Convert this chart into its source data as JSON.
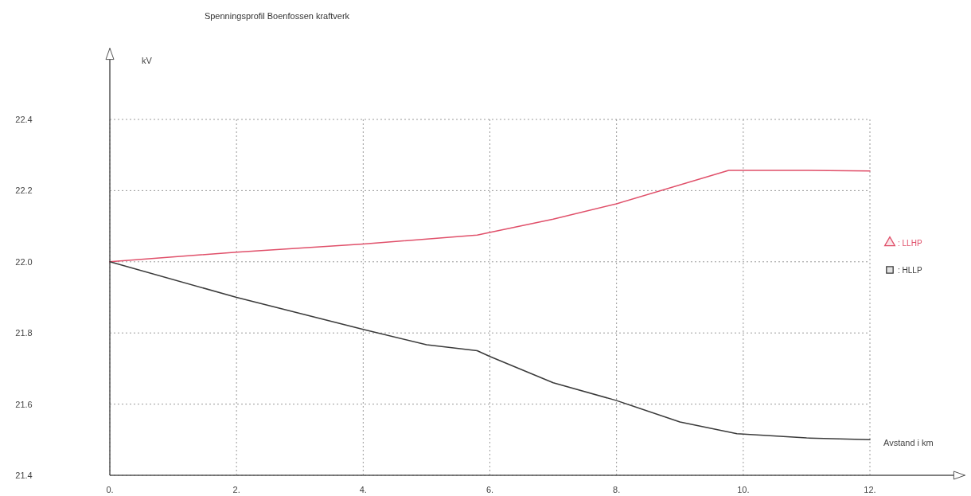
{
  "chart_data": {
    "type": "line",
    "title": "Spenningsprofil Boenfossen kraftverk",
    "xlabel": "Avstand i km",
    "ylabel": "kV",
    "xlim": [
      0,
      13.5
    ],
    "ylim": [
      21.4,
      22.6
    ],
    "xticks": [
      {
        "value": 0,
        "label": "0."
      },
      {
        "value": 2,
        "label": "2."
      },
      {
        "value": 4,
        "label": "4."
      },
      {
        "value": 6,
        "label": "6."
      },
      {
        "value": 8,
        "label": "8."
      },
      {
        "value": 10,
        "label": "10."
      },
      {
        "value": 12,
        "label": "12."
      }
    ],
    "yticks": [
      {
        "value": 21.4,
        "label": "21.4"
      },
      {
        "value": 21.6,
        "label": "21.6"
      },
      {
        "value": 21.8,
        "label": "21.8"
      },
      {
        "value": 22.0,
        "label": "22.0"
      },
      {
        "value": 22.2,
        "label": "22.2"
      },
      {
        "value": 22.4,
        "label": "22.4"
      }
    ],
    "grid": true,
    "legend": "right",
    "marker": "none",
    "line_style": "solid",
    "series": [
      {
        "name": ": LLHP",
        "color": "#e0506a",
        "x": [
          0,
          2,
          4,
          5.8,
          7,
          8,
          9.77,
          11,
          12
        ],
        "values": [
          22.0,
          22.027,
          22.05,
          22.075,
          22.12,
          22.163,
          22.257,
          22.257,
          22.255
        ]
      },
      {
        "name": ": HLLP",
        "color": "#3a3a3a",
        "x": [
          0,
          2,
          4,
          5,
          5.8,
          6,
          7,
          8,
          9,
          9.9,
          11,
          12
        ],
        "values": [
          22.0,
          21.9,
          21.81,
          21.767,
          21.75,
          21.734,
          21.66,
          21.61,
          21.55,
          21.517,
          21.505,
          21.5
        ]
      }
    ]
  }
}
